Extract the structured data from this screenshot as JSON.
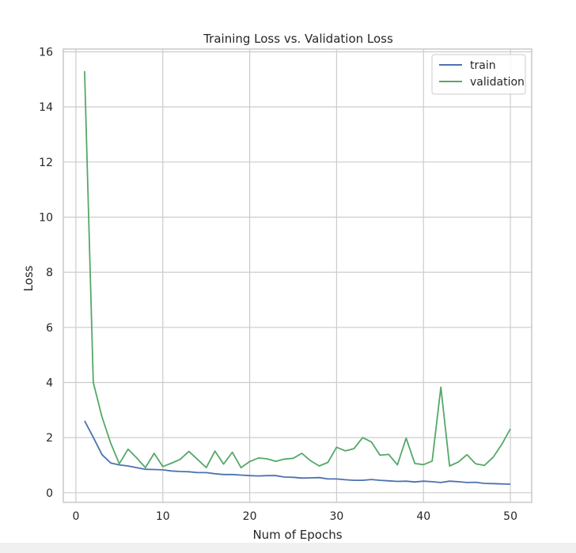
{
  "chart_data": {
    "type": "line",
    "title": "Training Loss vs. Validation Loss",
    "xlabel": "Num of Epochs",
    "ylabel": "Loss",
    "xlim": [
      -1.45,
      52.45
    ],
    "ylim": [
      -0.35,
      16.1
    ],
    "xticks": [
      0,
      10,
      20,
      30,
      40,
      50
    ],
    "yticks": [
      0,
      2,
      4,
      6,
      8,
      10,
      12,
      14,
      16
    ],
    "grid": true,
    "legend_position": "top-right",
    "x": [
      1,
      2,
      3,
      4,
      5,
      6,
      7,
      8,
      9,
      10,
      11,
      12,
      13,
      14,
      15,
      16,
      17,
      18,
      19,
      20,
      21,
      22,
      23,
      24,
      25,
      26,
      27,
      28,
      29,
      30,
      31,
      32,
      33,
      34,
      35,
      36,
      37,
      38,
      39,
      40,
      41,
      42,
      43,
      44,
      45,
      46,
      47,
      48,
      49,
      50
    ],
    "series": [
      {
        "name": "train",
        "color": "#4c72b0",
        "values": [
          2.61,
          2.01,
          1.38,
          1.08,
          1.01,
          0.97,
          0.91,
          0.85,
          0.84,
          0.83,
          0.79,
          0.77,
          0.76,
          0.73,
          0.73,
          0.69,
          0.66,
          0.66,
          0.64,
          0.62,
          0.61,
          0.62,
          0.62,
          0.57,
          0.56,
          0.53,
          0.54,
          0.55,
          0.5,
          0.5,
          0.47,
          0.45,
          0.45,
          0.48,
          0.45,
          0.43,
          0.41,
          0.42,
          0.39,
          0.42,
          0.4,
          0.37,
          0.42,
          0.4,
          0.37,
          0.38,
          0.34,
          0.33,
          0.32,
          0.31
        ]
      },
      {
        "name": "validation",
        "color": "#55a868",
        "values": [
          15.3,
          4.0,
          2.75,
          1.8,
          1.05,
          1.58,
          1.26,
          0.91,
          1.43,
          0.95,
          1.07,
          1.21,
          1.5,
          1.21,
          0.91,
          1.51,
          1.04,
          1.47,
          0.91,
          1.13,
          1.26,
          1.23,
          1.14,
          1.22,
          1.25,
          1.43,
          1.16,
          0.97,
          1.1,
          1.65,
          1.52,
          1.6,
          2.0,
          1.84,
          1.36,
          1.39,
          1.01,
          1.98,
          1.06,
          1.02,
          1.15,
          3.83,
          0.97,
          1.11,
          1.38,
          1.05,
          0.99,
          1.28,
          1.75,
          2.32
        ]
      }
    ]
  }
}
